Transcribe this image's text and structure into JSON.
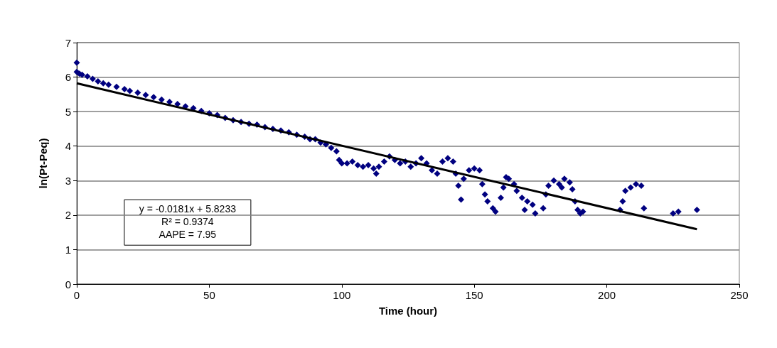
{
  "chart_data": {
    "type": "scatter",
    "xlabel": "Time (hour)",
    "ylabel": "ln(Pt-Peq)",
    "xlim": [
      0,
      250
    ],
    "xticks": [
      0,
      50,
      100,
      150,
      200,
      250
    ],
    "ylim": [
      0,
      7
    ],
    "yticks": [
      0,
      1,
      2,
      3,
      4,
      5,
      6,
      7
    ],
    "grid": "y",
    "marker": "diamond",
    "annotations": [
      "y = -0.0181x + 5.8233",
      "R² = 0.9374",
      "AAPE = 7.95"
    ],
    "series": [
      {
        "color": "#000080",
        "x": [
          0,
          0,
          1,
          2,
          4,
          6,
          8,
          10,
          12,
          15,
          18,
          20,
          23,
          26,
          29,
          32,
          35,
          38,
          41,
          44,
          47,
          50,
          53,
          56,
          59,
          62,
          65,
          68,
          71,
          74,
          77,
          80,
          83,
          86,
          88,
          90,
          92,
          94,
          96,
          98,
          99,
          100,
          102,
          104,
          106,
          108,
          110,
          112,
          113,
          114,
          116,
          118,
          120,
          122,
          124,
          126,
          128,
          130,
          132,
          134,
          136,
          138,
          140,
          142,
          143,
          144,
          145,
          146,
          148,
          150,
          152,
          153,
          154,
          155,
          157,
          158,
          160,
          161,
          162,
          163,
          165,
          166,
          168,
          169,
          170,
          172,
          173,
          176,
          177,
          178,
          180,
          182,
          183,
          184,
          186,
          187,
          188,
          189,
          190,
          191,
          205,
          206,
          207,
          209,
          211,
          213,
          214,
          225,
          227,
          234
        ],
        "values": [
          6.42,
          6.15,
          6.1,
          6.07,
          6.02,
          5.95,
          5.88,
          5.82,
          5.78,
          5.72,
          5.65,
          5.6,
          5.55,
          5.48,
          5.42,
          5.35,
          5.28,
          5.22,
          5.15,
          5.1,
          5.02,
          4.95,
          4.9,
          4.82,
          4.75,
          4.7,
          4.65,
          4.62,
          4.55,
          4.5,
          4.45,
          4.4,
          4.33,
          4.27,
          4.2,
          4.2,
          4.1,
          4.05,
          3.95,
          3.85,
          3.6,
          3.5,
          3.5,
          3.55,
          3.45,
          3.4,
          3.45,
          3.35,
          3.2,
          3.4,
          3.55,
          3.7,
          3.6,
          3.5,
          3.55,
          3.4,
          3.5,
          3.65,
          3.5,
          3.3,
          3.2,
          3.55,
          3.65,
          3.55,
          3.2,
          2.85,
          2.45,
          3.05,
          3.3,
          3.35,
          3.3,
          2.9,
          2.6,
          2.4,
          2.2,
          2.1,
          2.5,
          2.8,
          3.1,
          3.05,
          2.9,
          2.7,
          2.5,
          2.15,
          2.4,
          2.3,
          2.05,
          2.2,
          2.6,
          2.85,
          3.0,
          2.9,
          2.8,
          3.05,
          2.95,
          2.75,
          2.4,
          2.15,
          2.05,
          2.1,
          2.15,
          2.4,
          2.7,
          2.8,
          2.9,
          2.85,
          2.2,
          2.05,
          2.1,
          2.15
        ]
      },
      {
        "type": "line",
        "color": "#000000",
        "marker": "none",
        "x": [
          0,
          234
        ],
        "values": [
          5.82,
          1.59
        ]
      }
    ]
  }
}
